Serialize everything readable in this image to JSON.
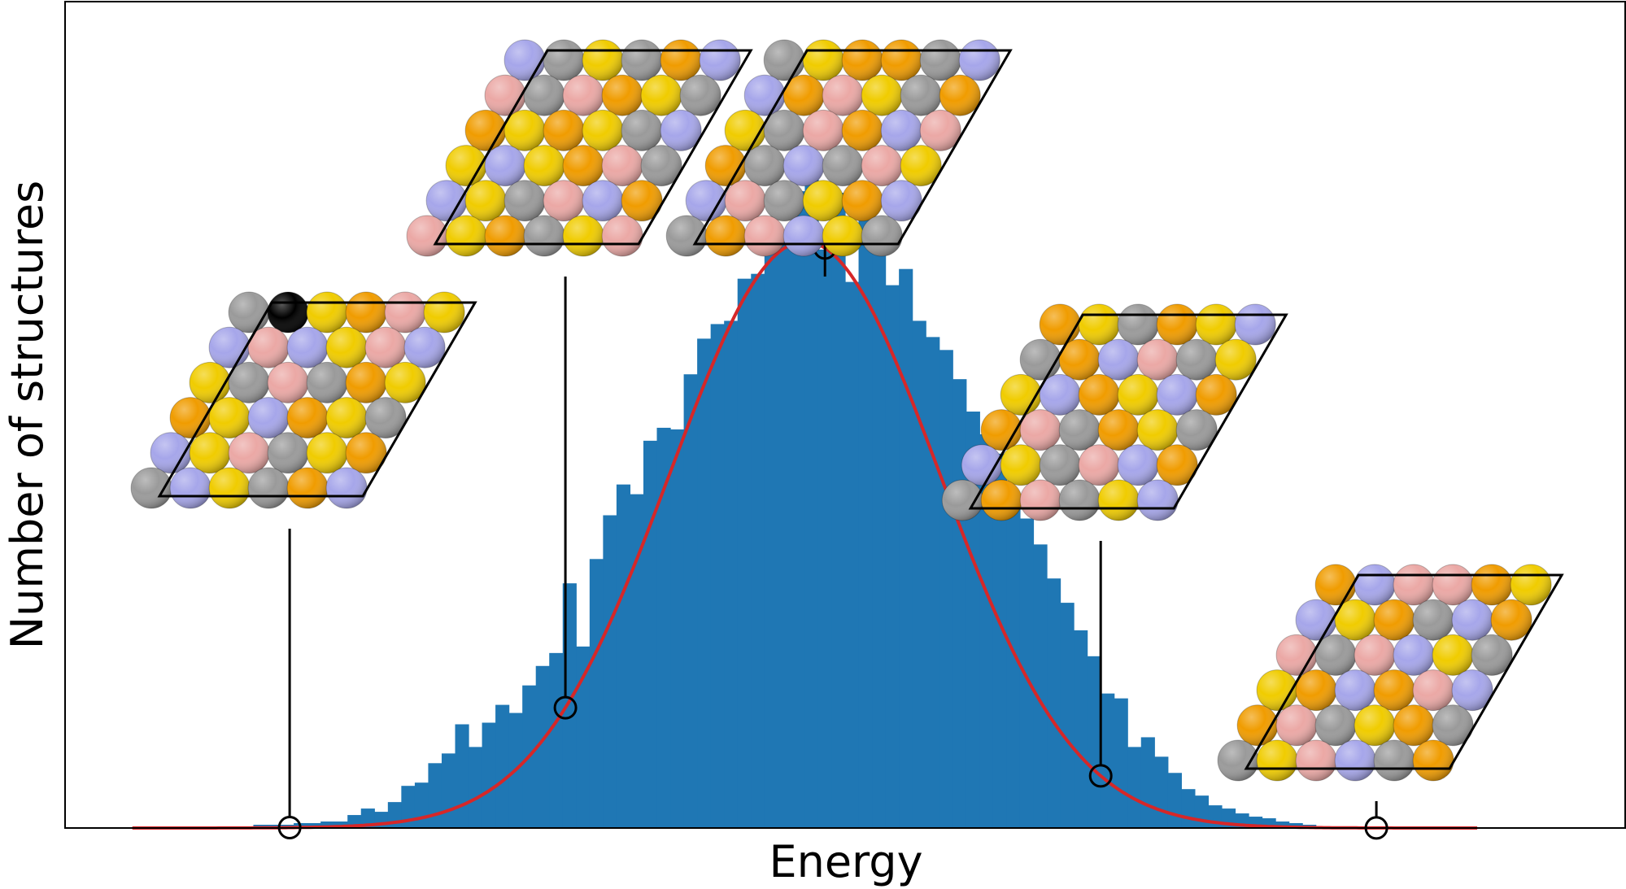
{
  "chart_data": {
    "type": "bar",
    "xlabel": "Energy",
    "ylabel": "Number of structures",
    "grid": false,
    "xticks_shown": false,
    "yticks_shown": false,
    "colors": {
      "bars": "#1f77b4",
      "fit_curve": "#d62728",
      "frame": "#000000",
      "markers": "#000000"
    },
    "series": [
      {
        "kind": "histogram"
      },
      {
        "kind": "gaussian-fit-line"
      }
    ],
    "histogram": {
      "bin_start": -4.6,
      "bin_width": 0.1,
      "counts": [
        1,
        1,
        1,
        1,
        1,
        2,
        2,
        2,
        3,
        3,
        4,
        4,
        8,
        12,
        10,
        16,
        26,
        28,
        40,
        46,
        64,
        50,
        65,
        76,
        71,
        88,
        100,
        108,
        151,
        112,
        166,
        193,
        212,
        206,
        239,
        247,
        246,
        280,
        302,
        311,
        313,
        339,
        342,
        367,
        367,
        393,
        401,
        357,
        392,
        337,
        394,
        373,
        335,
        345,
        313,
        303,
        295,
        277,
        257,
        243,
        231,
        202,
        191,
        175,
        154,
        139,
        122,
        106,
        83,
        80,
        50,
        56,
        44,
        34,
        24,
        20,
        14,
        12,
        9,
        7,
        6,
        4,
        3,
        2,
        1,
        1
      ]
    },
    "fit": {
      "mean": 0.0,
      "sigma": 1.0,
      "peak": 362
    },
    "xlim": [
      -5.5,
      6.1
    ],
    "ylim": [
      0,
      510
    ],
    "highlighted_structures": [
      {
        "energy": -3.83,
        "elements_grid": [
          "GRYOPY",
          "BPBYPB",
          "YGPGOY",
          "OYBOYG",
          "BYPGYO",
          "GBYGOB"
        ]
      },
      {
        "energy": -1.78,
        "elements_grid": [
          "BGYGOB",
          "PGPOYG",
          "OYOYGB",
          "YBYOPG",
          "BYGPBO",
          "PYOGYP"
        ]
      },
      {
        "energy": 0.15,
        "elements_grid": [
          "GYOOGB",
          "BOPYGO",
          "YGPOBP",
          "OGBGPY",
          "BPGYOB",
          "GOPBYG"
        ]
      },
      {
        "energy": 2.2,
        "elements_grid": [
          "OYGOYB",
          "GOBPGY",
          "YBOYBO",
          "OPGOYG",
          "BYGPBO",
          "GOPGYB"
        ]
      },
      {
        "energy": 4.25,
        "elements_grid": [
          "OBPPOY",
          "BYOGBO",
          "PGPBYG",
          "YOBOPB",
          "OPGYOG",
          "GYPBGO"
        ]
      }
    ],
    "element_palette": {
      "Y": "#f0cc00",
      "O": "#f09c00",
      "G": "#9a9a9a",
      "P": "#eba8a5",
      "B": "#a6a6ea"
    }
  }
}
